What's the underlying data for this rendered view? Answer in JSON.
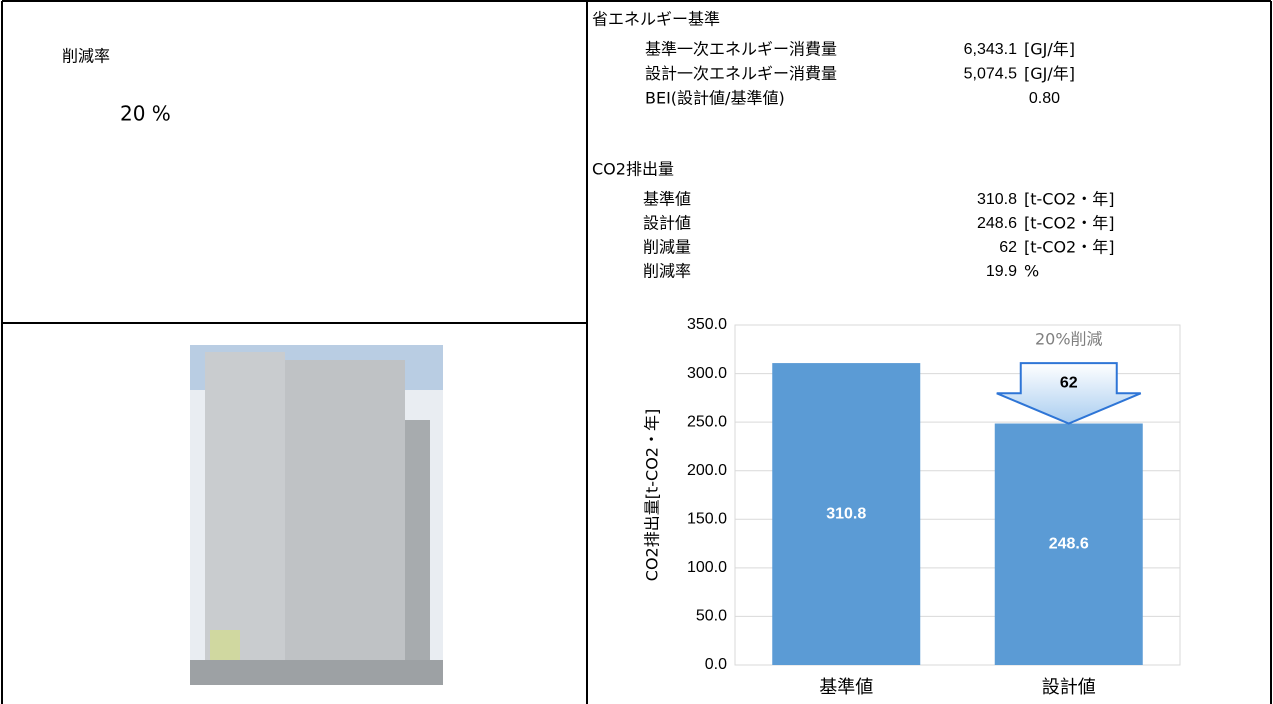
{
  "summary": {
    "label": "削減率",
    "value": "20 %"
  },
  "energy": {
    "title": "省エネルギー基準",
    "rows": [
      [
        "基準一次エネルギー消費量",
        "6,343.1",
        "[GJ/年]"
      ],
      [
        "設計一次エネルギー消費量",
        "5,074.5",
        "[GJ/年]"
      ],
      [
        "BEI(設計値/基準値)",
        "0.80"
      ]
    ]
  },
  "co2": {
    "title": "CO2排出量",
    "rows": [
      [
        "基準値",
        "310.8",
        "[t-CO2・年]"
      ],
      [
        "設計値",
        "248.6",
        "[t-CO2・年]"
      ],
      [
        "削減量",
        "62",
        "[t-CO2・年]"
      ],
      [
        "削減率",
        "19.9",
        "%"
      ]
    ]
  },
  "chart_data": {
    "type": "bar",
    "y_label": "CO2排出量[t-CO2・年]",
    "categories": [
      "基準値",
      "設計値"
    ],
    "values": [
      310.8,
      248.6
    ],
    "color": "#5b9bd5",
    "ylim": [
      0,
      350
    ],
    "yticks": [
      {
        "value": 0,
        "label": "0.0"
      },
      {
        "value": 50,
        "label": "50.0"
      },
      {
        "value": 100,
        "label": "100.0"
      },
      {
        "value": 150,
        "label": "150.0"
      },
      {
        "value": 200,
        "label": "200.0"
      },
      {
        "value": 250,
        "label": "250.0"
      },
      {
        "value": 300,
        "label": "300.0"
      },
      {
        "value": 350,
        "label": "350.0"
      }
    ],
    "grid": true,
    "annotation": "20%削減",
    "reduction": 62
  }
}
